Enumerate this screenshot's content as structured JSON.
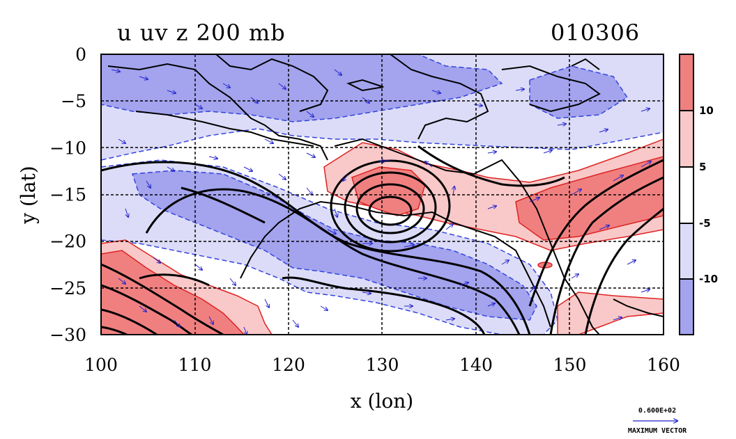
{
  "chart_data": {
    "type": "heatmap",
    "title_left": "u uv z 200 mb",
    "title_right": "010306",
    "xlabel": "x (lon)",
    "ylabel": "y (lat)",
    "xlim": [
      100,
      160
    ],
    "ylim": [
      -30,
      0
    ],
    "x_ticks": [
      100,
      110,
      120,
      130,
      140,
      150,
      160
    ],
    "y_ticks": [
      0,
      -5,
      -10,
      -15,
      -20,
      -25,
      -30
    ],
    "grid": true,
    "colorbar": {
      "levels_labeled": [
        10,
        5,
        -5,
        -10
      ],
      "bands": [
        {
          "range": "> 10",
          "color": "#f08080"
        },
        {
          "range": "5 to 10",
          "color": "#f9c8c8"
        },
        {
          "range": "-5 to 5",
          "color": "#ffffff"
        },
        {
          "range": "-10 to -5",
          "color": "#dcdcf8"
        },
        {
          "range": "< -10",
          "color": "#a3a3ee"
        }
      ]
    },
    "vector_reference": {
      "value_label": "0.600E+02",
      "caption": "MAXIMUM  VECTOR"
    },
    "features": [
      {
        "name": "closed low (z contours)",
        "center_lon": 130.5,
        "center_lat": -17
      }
    ]
  }
}
